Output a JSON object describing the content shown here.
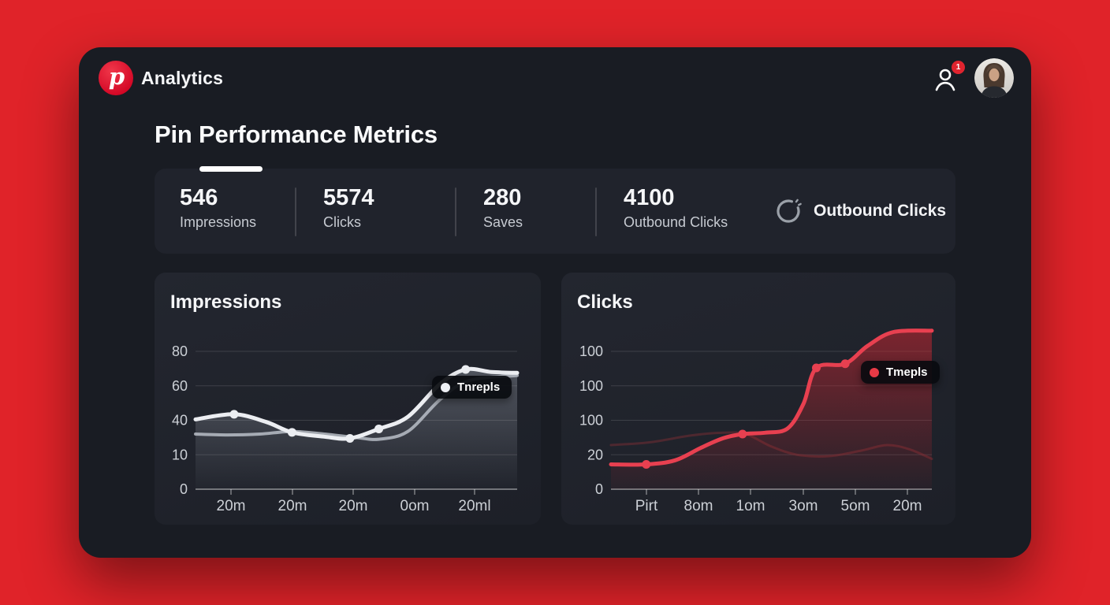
{
  "header": {
    "brand": "Analytics",
    "notification_count": "1"
  },
  "page_title": "Pin Performance Metrics",
  "stats": [
    {
      "value": "546",
      "label": "Impressions"
    },
    {
      "value": "5574",
      "label": "Clicks"
    },
    {
      "value": "280",
      "label": "Saves"
    },
    {
      "value": "4100",
      "label": "Outbound Clicks"
    }
  ],
  "stats_side": {
    "label": "Outbound Clicks",
    "icon": "spinner-icon"
  },
  "colors": {
    "background": "#e02329",
    "card": "#191c23",
    "panel": "#20232c",
    "accent_red": "#e84050",
    "line_white": "#eceef2",
    "line_gray": "#b9bdc6"
  },
  "chart_data": [
    {
      "type": "line",
      "title": "Impressions",
      "y_ticks": [
        "80",
        "60",
        "40",
        "10",
        "0"
      ],
      "x_ticks": [
        "20m",
        "20m",
        "20m",
        "0om",
        "20ml"
      ],
      "y_max": 80,
      "legend": {
        "label": "Tnrepls",
        "dot_color": "#eef0f4"
      },
      "fill": {
        "from": "rgba(190,197,210,0.32)",
        "to": "rgba(190,197,210,0.02)"
      },
      "series": [
        {
          "name": "impressions-main",
          "color": "#eceef2",
          "width": 5,
          "opacity": 1,
          "area": true,
          "points": [
            [
              0,
              40.5
            ],
            [
              0.12,
              43.5
            ],
            [
              0.22,
              39
            ],
            [
              0.3,
              33
            ],
            [
              0.4,
              30.5
            ],
            [
              0.48,
              29.5
            ],
            [
              0.57,
              35
            ],
            [
              0.66,
              42
            ],
            [
              0.76,
              61
            ],
            [
              0.84,
              69.5
            ],
            [
              0.92,
              68
            ],
            [
              1,
              67.5
            ]
          ],
          "dots": [
            1,
            3,
            5,
            6,
            9
          ]
        },
        {
          "name": "impressions-secondary",
          "color": "#b9bdc6",
          "width": 4,
          "opacity": 0.85,
          "area": false,
          "points": [
            [
              0,
              32
            ],
            [
              0.1,
              31.5
            ],
            [
              0.2,
              32
            ],
            [
              0.3,
              33.5
            ],
            [
              0.4,
              32
            ],
            [
              0.5,
              30
            ],
            [
              0.57,
              29
            ],
            [
              0.66,
              33.5
            ],
            [
              0.76,
              52
            ],
            [
              0.85,
              63
            ],
            [
              1,
              66
            ]
          ],
          "dots": []
        }
      ]
    },
    {
      "type": "line",
      "title": "Clicks",
      "y_ticks": [
        "100",
        "100",
        "100",
        "20",
        "0"
      ],
      "x_ticks": [
        "Pirt",
        "8om",
        "1om",
        "3om",
        "5om",
        "20m"
      ],
      "y_max": 100,
      "legend": {
        "label": "Tmepls",
        "dot_color": "#e83a46"
      },
      "fill": {
        "from": "rgba(198,38,48,0.55)",
        "to": "rgba(198,38,48,0.05)"
      },
      "series": [
        {
          "name": "clicks-main",
          "color": "#e84050",
          "width": 5,
          "opacity": 1,
          "area": true,
          "points": [
            [
              0,
              18
            ],
            [
              0.11,
              18
            ],
            [
              0.2,
              21
            ],
            [
              0.28,
              30
            ],
            [
              0.35,
              37
            ],
            [
              0.41,
              40
            ],
            [
              0.48,
              41
            ],
            [
              0.55,
              44
            ],
            [
              0.6,
              62
            ],
            [
              0.64,
              88
            ],
            [
              0.73,
              91
            ],
            [
              0.8,
              104
            ],
            [
              0.88,
              114
            ],
            [
              1,
              115
            ]
          ],
          "dots": [
            1,
            5,
            9,
            10
          ]
        },
        {
          "name": "clicks-background",
          "color": "#7a2e34",
          "width": 3,
          "opacity": 0.5,
          "area": false,
          "points": [
            [
              0,
              32
            ],
            [
              0.12,
              34
            ],
            [
              0.25,
              39
            ],
            [
              0.35,
              41
            ],
            [
              0.42,
              40
            ],
            [
              0.5,
              31
            ],
            [
              0.58,
              25
            ],
            [
              0.68,
              24
            ],
            [
              0.78,
              28
            ],
            [
              0.86,
              32
            ],
            [
              0.93,
              29
            ],
            [
              1,
              22
            ]
          ],
          "dots": []
        }
      ]
    }
  ]
}
